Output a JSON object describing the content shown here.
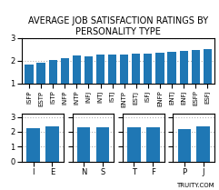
{
  "chart_data": [
    {
      "type": "bar",
      "title": "AVERAGE JOB SATISFACTION RATINGS BY PERSONALITY TYPE",
      "categories": [
        "ISFP",
        "ESTP",
        "ISTP",
        "INFP",
        "INTP",
        "INFJ",
        "INTJ",
        "ISTJ",
        "ENTP",
        "ESTJ",
        "ISFJ",
        "ENFP",
        "ENTJ",
        "ENFJ",
        "ESFP",
        "ESFJ"
      ],
      "values": [
        1.85,
        1.92,
        2.05,
        2.12,
        2.22,
        2.2,
        2.26,
        2.27,
        2.29,
        2.32,
        2.33,
        2.34,
        2.38,
        2.42,
        2.47,
        2.52
      ],
      "ylim": [
        1,
        3.0
      ],
      "yticks": [
        1,
        2,
        3
      ],
      "grid": true
    },
    {
      "type": "bar",
      "categories": [
        "I",
        "E"
      ],
      "values": [
        2.22,
        2.38
      ],
      "ylim": [
        0,
        3.2
      ],
      "yticks": [
        0,
        1,
        2,
        3
      ],
      "grid": true
    },
    {
      "type": "bar",
      "categories": [
        "N",
        "S"
      ],
      "values": [
        2.31,
        2.28
      ],
      "ylim": [
        0,
        3.2
      ],
      "yticks": [
        0,
        1,
        2,
        3
      ],
      "grid": true,
      "tick_labels": "x"
    },
    {
      "type": "bar",
      "categories": [
        "T",
        "F"
      ],
      "values": [
        2.3,
        2.29
      ],
      "ylim": [
        0,
        3.2
      ],
      "yticks": [
        0,
        1,
        2,
        3
      ],
      "grid": true,
      "tick_labels": "x"
    },
    {
      "type": "bar",
      "categories": [
        "P",
        "J"
      ],
      "values": [
        2.2,
        2.35
      ],
      "ylim": [
        0,
        3.2
      ],
      "yticks": [
        0,
        1,
        2,
        3
      ],
      "grid": true,
      "tick_labels": "x",
      "annotation": "TRUITY.COM"
    }
  ]
}
